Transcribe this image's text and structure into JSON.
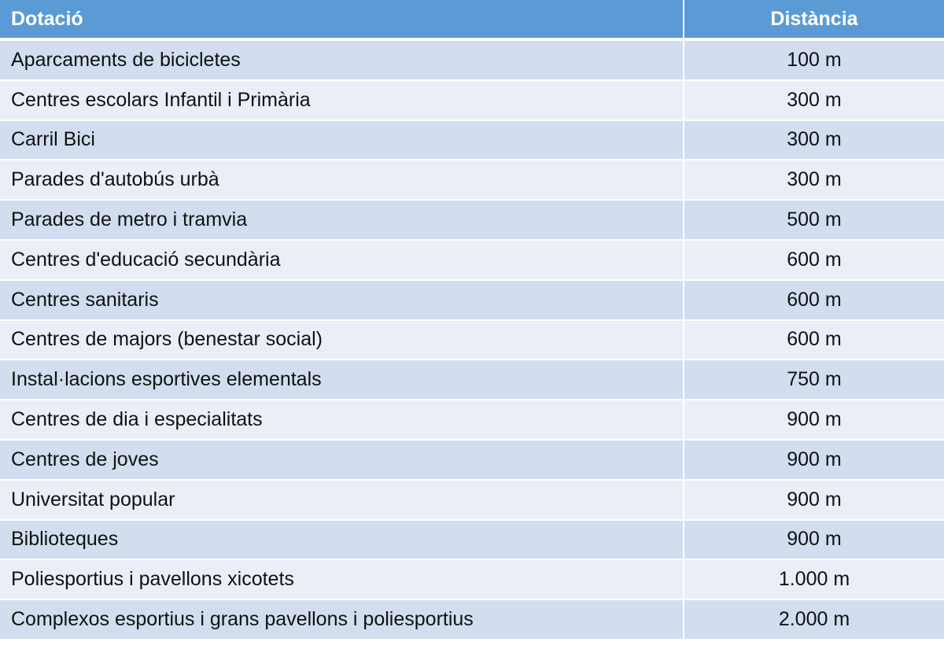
{
  "header": {
    "col1": "Dotació",
    "col2": "Distància"
  },
  "rows": [
    {
      "label": "Aparcaments de bicicletes",
      "distance": "100 m"
    },
    {
      "label": "Centres escolars Infantil i Primària",
      "distance": "300 m"
    },
    {
      "label": "Carril Bici",
      "distance": "300 m"
    },
    {
      "label": "Parades d'autobús urbà",
      "distance": "300 m"
    },
    {
      "label": "Parades de metro i tramvia",
      "distance": "500 m"
    },
    {
      "label": "Centres d'educació secundària",
      "distance": "600 m"
    },
    {
      "label": "Centres sanitaris",
      "distance": "600 m"
    },
    {
      "label": "Centres de majors (benestar social)",
      "distance": "600 m"
    },
    {
      "label": "Instal·lacions esportives elementals",
      "distance": "750 m"
    },
    {
      "label": "Centres de dia i especialitats",
      "distance": "900 m"
    },
    {
      "label": "Centres de joves",
      "distance": "900 m"
    },
    {
      "label": "Universitat popular",
      "distance": "900 m"
    },
    {
      "label": "Biblioteques",
      "distance": "900 m"
    },
    {
      "label": "Poliesportius i pavellons xicotets",
      "distance": "1.000 m"
    },
    {
      "label": "Complexos esportius i grans pavellons i poliesportius",
      "distance": "2.000 m"
    }
  ],
  "colors": {
    "header_bg": "#5b9bd5",
    "row_odd_bg": "#d2deef",
    "row_even_bg": "#eaeff7"
  }
}
